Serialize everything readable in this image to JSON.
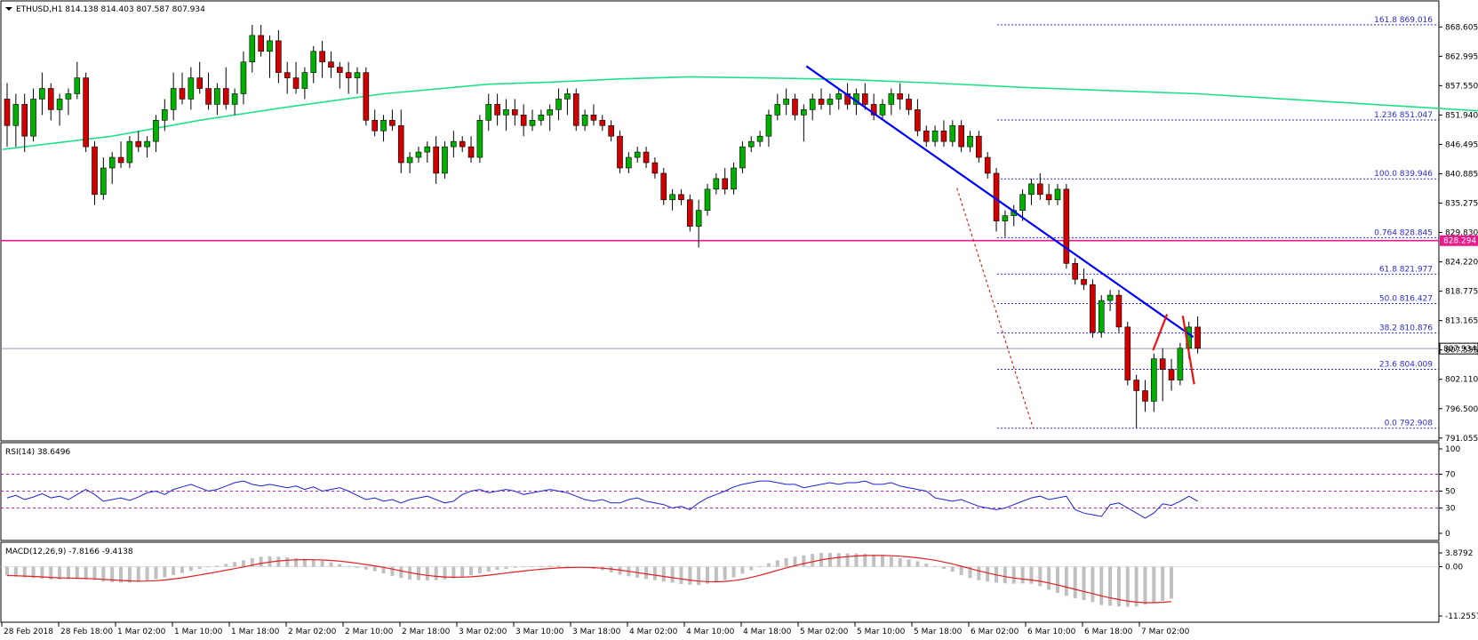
{
  "chart_data": {
    "type": "candlestick",
    "symbol": "ETHUSD",
    "timeframe": "H1",
    "title": "ETHUSD,H1  814.138 814.403 807.587 807.934",
    "ohlc_header": {
      "open": 814.138,
      "high": 814.403,
      "low": 807.587,
      "close": 807.934
    },
    "current_price": 807.934,
    "current_price_label": "807.934",
    "support_level": 828.294,
    "support_label": "828.294",
    "price_axis_ticks": [
      "868.605",
      "862.995",
      "857.550",
      "851.940",
      "846.495",
      "840.885",
      "835.275",
      "829.830",
      "824.220",
      "818.775",
      "813.165",
      "807.555",
      "802.110",
      "796.500",
      "791.055"
    ],
    "x_axis_labels": [
      "28 Feb 2018",
      "28 Feb 18:00",
      "1 Mar 02:00",
      "1 Mar 10:00",
      "1 Mar 18:00",
      "2 Mar 02:00",
      "2 Mar 10:00",
      "2 Mar 18:00",
      "3 Mar 02:00",
      "3 Mar 10:00",
      "3 Mar 18:00",
      "4 Mar 02:00",
      "4 Mar 10:00",
      "4 Mar 18:00",
      "5 Mar 02:00",
      "5 Mar 10:00",
      "5 Mar 18:00",
      "6 Mar 02:00",
      "6 Mar 10:00",
      "6 Mar 18:00",
      "7 Mar 02:00"
    ],
    "candles": [
      [
        855,
        858,
        846,
        850
      ],
      [
        850,
        856,
        846,
        854
      ],
      [
        854,
        856,
        845,
        848
      ],
      [
        848,
        857,
        847,
        855
      ],
      [
        855,
        860,
        852,
        857
      ],
      [
        857,
        858,
        851,
        853
      ],
      [
        853,
        856,
        850,
        855
      ],
      [
        855,
        857,
        852,
        856
      ],
      [
        856,
        862,
        855,
        859
      ],
      [
        859,
        860,
        845,
        846
      ],
      [
        846,
        847,
        835,
        837
      ],
      [
        837,
        844,
        836,
        842
      ],
      [
        842,
        845,
        839,
        844
      ],
      [
        844,
        847,
        842,
        843
      ],
      [
        843,
        848,
        842,
        847
      ],
      [
        847,
        849,
        845,
        846
      ],
      [
        846,
        848,
        844,
        847
      ],
      [
        847,
        852,
        845,
        851
      ],
      [
        851,
        855,
        849,
        853
      ],
      [
        853,
        860,
        851,
        857
      ],
      [
        857,
        860,
        854,
        855
      ],
      [
        855,
        861,
        853,
        859
      ],
      [
        859,
        862,
        856,
        857
      ],
      [
        857,
        860,
        853,
        854
      ],
      [
        854,
        858,
        852,
        857
      ],
      [
        857,
        861,
        853,
        854
      ],
      [
        854,
        857,
        852,
        856
      ],
      [
        856,
        864,
        854,
        862
      ],
      [
        862,
        869,
        860,
        867
      ],
      [
        867,
        869,
        863,
        864
      ],
      [
        864,
        867,
        859,
        866
      ],
      [
        866,
        868,
        858,
        860
      ],
      [
        860,
        862,
        856,
        859
      ],
      [
        859,
        862,
        856,
        857
      ],
      [
        857,
        861,
        855,
        860
      ],
      [
        860,
        865,
        858,
        864
      ],
      [
        864,
        866,
        859,
        862
      ],
      [
        862,
        864,
        859,
        861
      ],
      [
        861,
        862,
        857,
        860
      ],
      [
        860,
        862,
        856,
        859
      ],
      [
        859,
        861,
        856,
        860
      ],
      [
        860,
        861,
        850,
        851
      ],
      [
        851,
        853,
        848,
        849
      ],
      [
        849,
        852,
        847,
        851
      ],
      [
        851,
        853,
        849,
        850
      ],
      [
        850,
        853,
        841,
        843
      ],
      [
        843,
        845,
        841,
        844
      ],
      [
        844,
        846,
        843,
        845
      ],
      [
        845,
        847,
        843,
        846
      ],
      [
        846,
        848,
        839,
        841
      ],
      [
        841,
        847,
        840,
        846
      ],
      [
        846,
        849,
        844,
        847
      ],
      [
        847,
        848,
        845,
        846
      ],
      [
        846,
        848,
        843,
        844
      ],
      [
        844,
        852,
        843,
        851
      ],
      [
        851,
        856,
        849,
        854
      ],
      [
        854,
        856,
        850,
        852
      ],
      [
        852,
        855,
        849,
        853
      ],
      [
        853,
        855,
        850,
        852
      ],
      [
        852,
        854,
        848,
        850
      ],
      [
        850,
        853,
        849,
        851
      ],
      [
        851,
        853,
        850,
        852
      ],
      [
        852,
        854,
        849,
        853
      ],
      [
        853,
        857,
        851,
        855
      ],
      [
        855,
        857,
        852,
        856
      ],
      [
        856,
        857,
        849,
        850
      ],
      [
        850,
        853,
        849,
        852
      ],
      [
        852,
        854,
        850,
        851
      ],
      [
        851,
        852,
        849,
        850
      ],
      [
        850,
        851,
        847,
        848
      ],
      [
        848,
        849,
        841,
        842
      ],
      [
        842,
        845,
        841,
        844
      ],
      [
        844,
        846,
        843,
        845
      ],
      [
        845,
        846,
        842,
        843
      ],
      [
        843,
        844,
        840,
        841
      ],
      [
        841,
        842,
        835,
        836
      ],
      [
        836,
        838,
        834,
        837
      ],
      [
        837,
        838,
        835,
        836
      ],
      [
        836,
        837,
        830,
        831
      ],
      [
        831,
        836,
        827,
        834
      ],
      [
        834,
        839,
        833,
        838
      ],
      [
        838,
        841,
        837,
        840
      ],
      [
        840,
        842,
        837,
        838
      ],
      [
        838,
        843,
        837,
        842
      ],
      [
        842,
        847,
        841,
        846
      ],
      [
        846,
        848,
        845,
        847
      ],
      [
        847,
        849,
        846,
        848
      ],
      [
        848,
        853,
        846,
        852
      ],
      [
        852,
        856,
        851,
        854
      ],
      [
        854,
        857,
        852,
        855
      ],
      [
        855,
        856,
        851,
        852
      ],
      [
        852,
        854,
        847,
        853
      ],
      [
        853,
        856,
        851,
        855
      ],
      [
        855,
        857,
        853,
        854
      ],
      [
        854,
        856,
        852,
        855
      ],
      [
        855,
        857,
        853,
        856
      ],
      [
        856,
        858,
        853,
        854
      ],
      [
        854,
        857,
        852,
        856
      ],
      [
        856,
        858,
        853,
        854
      ],
      [
        854,
        856,
        851,
        852
      ],
      [
        852,
        855,
        851,
        854
      ],
      [
        854,
        857,
        852,
        856
      ],
      [
        856,
        858,
        853,
        855
      ],
      [
        855,
        856,
        852,
        853
      ],
      [
        853,
        855,
        848,
        849
      ],
      [
        849,
        850,
        846,
        847
      ],
      [
        847,
        850,
        846,
        849
      ],
      [
        849,
        851,
        846,
        847
      ],
      [
        847,
        851,
        846,
        850
      ],
      [
        850,
        851,
        845,
        846
      ],
      [
        846,
        849,
        845,
        848
      ],
      [
        848,
        849,
        843,
        844
      ],
      [
        844,
        845,
        840,
        841
      ],
      [
        841,
        842,
        830,
        832
      ],
      [
        832,
        834,
        829,
        833
      ],
      [
        833,
        835,
        831,
        834
      ],
      [
        834,
        838,
        832,
        837
      ],
      [
        837,
        840,
        835,
        839
      ],
      [
        839,
        841,
        836,
        837
      ],
      [
        837,
        839,
        835,
        836
      ],
      [
        836,
        839,
        835,
        838
      ],
      [
        838,
        839,
        823,
        824
      ],
      [
        824,
        825,
        820,
        821
      ],
      [
        821,
        823,
        819,
        820
      ],
      [
        820,
        821,
        810,
        811
      ],
      [
        811,
        818,
        810,
        817
      ],
      [
        817,
        819,
        815,
        818
      ],
      [
        818,
        819,
        811,
        812
      ],
      [
        812,
        813,
        801,
        802
      ],
      [
        802,
        803,
        793,
        800
      ],
      [
        800,
        802,
        796,
        798
      ],
      [
        798,
        807,
        796,
        806
      ],
      [
        806,
        808,
        798,
        804
      ],
      [
        804,
        806,
        800,
        802
      ],
      [
        802,
        809,
        801,
        808
      ],
      [
        808,
        813,
        806,
        812
      ],
      [
        812,
        814,
        807,
        808
      ]
    ],
    "ma_points": [
      [
        0,
        845.5
      ],
      [
        12,
        848
      ],
      [
        22,
        851
      ],
      [
        32,
        853.5
      ],
      [
        43,
        856
      ],
      [
        55,
        857.8
      ],
      [
        62,
        858.2
      ],
      [
        70,
        858.8
      ],
      [
        78,
        859.2
      ],
      [
        86,
        859
      ],
      [
        96,
        858.7
      ],
      [
        106,
        858
      ],
      [
        116,
        857.2
      ],
      [
        126,
        856.6
      ],
      [
        136,
        856
      ],
      [
        146,
        855
      ],
      [
        156,
        854
      ],
      [
        166,
        853
      ],
      [
        176,
        852
      ],
      [
        186,
        851.5
      ],
      [
        196,
        851.5
      ],
      [
        206,
        851.7
      ],
      [
        216,
        851.8
      ],
      [
        226,
        851.6
      ],
      [
        236,
        851.2
      ],
      [
        246,
        850.6
      ],
      [
        256,
        849.6
      ],
      [
        266,
        848.4
      ],
      [
        276,
        847.2
      ],
      [
        286,
        846
      ],
      [
        296,
        844.6
      ],
      [
        306,
        843.2
      ],
      [
        316,
        841.8
      ],
      [
        325,
        840.9
      ]
    ],
    "ma_color": "#1fe08a",
    "support_color": "#e8198a",
    "trendline_color": "#0000ff",
    "bull_color": "#00b000",
    "bear_color": "#d00000",
    "fibonacci": {
      "color": "#2b2bd6",
      "levels": [
        {
          "label": "161.8  869.016",
          "price": 869.016
        },
        {
          "label": "1.236  851.047",
          "price": 851.047
        },
        {
          "label": "100.0  839.946",
          "price": 839.946
        },
        {
          "label": "0.764  828.845",
          "price": 828.845
        },
        {
          "label": "61.8  821.977",
          "price": 821.977
        },
        {
          "label": "50.0  816.427",
          "price": 816.427
        },
        {
          "label": "38.2  810.876",
          "price": 810.876
        },
        {
          "label": "23.6  804.009",
          "price": 804.009
        },
        {
          "label": "0.0  792.908",
          "price": 792.908
        }
      ]
    },
    "rsi": {
      "label": "RSI(14) 38.6496",
      "axis_ticks": [
        "100",
        "70",
        "50",
        "30",
        "0"
      ],
      "levels": [
        70,
        50,
        30
      ],
      "color": "#2020d0",
      "values": [
        42,
        45,
        40,
        43,
        47,
        42,
        44,
        40,
        46,
        52,
        46,
        38,
        40,
        42,
        39,
        43,
        48,
        50,
        46,
        52,
        55,
        58,
        54,
        50,
        52,
        56,
        60,
        62,
        58,
        56,
        58,
        56,
        54,
        56,
        52,
        55,
        50,
        52,
        54,
        50,
        45,
        40,
        42,
        38,
        40,
        36,
        40,
        42,
        44,
        40,
        36,
        38,
        46,
        50,
        52,
        48,
        50,
        52,
        50,
        46,
        48,
        50,
        52,
        50,
        48,
        44,
        40,
        38,
        40,
        36,
        36,
        40,
        42,
        38,
        36,
        34,
        30,
        32,
        28,
        36,
        42,
        46,
        50,
        55,
        58,
        60,
        62,
        62,
        60,
        58,
        58,
        54,
        56,
        58,
        60,
        58,
        60,
        60,
        62,
        58,
        58,
        60,
        56,
        54,
        52,
        50,
        42,
        40,
        38,
        40,
        36,
        32,
        30,
        28,
        30,
        34,
        38,
        42,
        44,
        40,
        42,
        44,
        28,
        24,
        22,
        20,
        34,
        36,
        30,
        24,
        18,
        24,
        35,
        33,
        38,
        44,
        38
      ]
    },
    "macd": {
      "label": "MACD(12,26,9) -7.8166 -9.4138",
      "axis_ticks": [
        "3.8792",
        "0.00",
        "-11.2557"
      ],
      "hist_color": "#c0c0c0",
      "signal_color": "#e02020",
      "hist": [
        -2.5,
        -2.8,
        -3,
        -3.2,
        -3.4,
        -3.6,
        -3.6,
        -3.5,
        -3.4,
        -3.6,
        -3.8,
        -4.2,
        -4.4,
        -4.5,
        -4.5,
        -4.3,
        -4,
        -3.5,
        -3,
        -2.4,
        -1.8,
        -1.2,
        -0.6,
        -0.2,
        0.3,
        0.8,
        1.3,
        1.8,
        2.4,
        2.8,
        2.9,
        2.8,
        2.6,
        2.4,
        2.2,
        1.9,
        1.6,
        1.2,
        0.7,
        0.2,
        -0.3,
        -0.8,
        -1.3,
        -1.9,
        -2.6,
        -3.2,
        -3.6,
        -3.8,
        -3.9,
        -3.8,
        -3.6,
        -3.3,
        -2.9,
        -2.4,
        -1.9,
        -1.4,
        -0.9,
        -0.6,
        -0.3,
        -0.1,
        0.1,
        0.2,
        0.3,
        0.3,
        0.2,
        0,
        -0.2,
        -0.6,
        -1,
        -1.6,
        -2.2,
        -2.7,
        -3.1,
        -3.5,
        -3.8,
        -4.2,
        -4.5,
        -4.9,
        -5.1,
        -5.2,
        -4.8,
        -4.4,
        -3.8,
        -3,
        -2,
        -1,
        0,
        1,
        1.8,
        2.4,
        2.8,
        3.2,
        3.6,
        3.9,
        3.9,
        3.8,
        3.7,
        3.7,
        3.6,
        3.4,
        3.1,
        2.8,
        2.4,
        2,
        1.5,
        0.9,
        0.2,
        -0.6,
        -1.4,
        -2.4,
        -3.2,
        -3.8,
        -4.2,
        -4.5,
        -4.7,
        -4.8,
        -4.7,
        -4.8,
        -5.5,
        -6.5,
        -7.4,
        -8.2,
        -8.9,
        -9.4,
        -10,
        -10.8,
        -11,
        -11.2,
        -11.3,
        -11.2,
        -10.7,
        -10.2,
        -9.6,
        -9
      ]
    }
  }
}
